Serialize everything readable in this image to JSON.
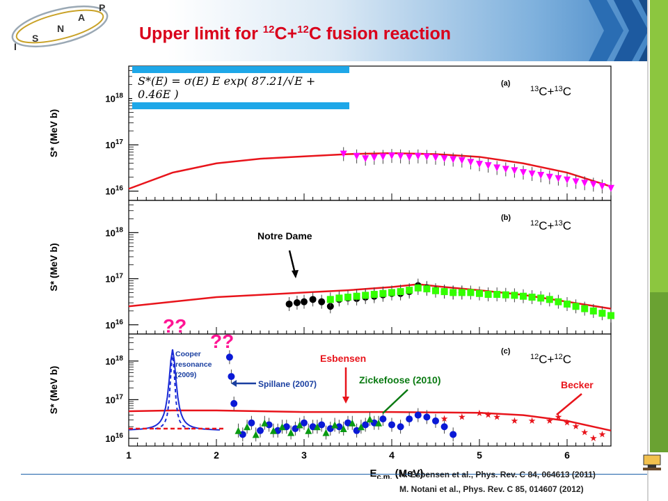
{
  "slide": {
    "title_html": "Upper limit for <sup>12</sup>C+<sup>12</sup>C fusion reaction",
    "logo_letters": [
      "I",
      "S",
      "N",
      "A",
      "P"
    ],
    "references": [
      "H. Esbensen et al., Phys. Rev. C 84, 064613 (2011)",
      "M. Notani et al., Phys. Rev. C 85, 014607 (2012)"
    ],
    "formula_text": "S*(E) = σ(E) E exp( 87.21/√E + 0.46E )"
  },
  "chart_data": [
    {
      "type": "scatter",
      "panel": "(a)",
      "system_html": "<tspan dy='-6' font-size='11'>13</tspan><tspan dy='6'>C+</tspan><tspan dy='-6' font-size='11'>13</tspan><tspan dy='6'>C</tspan>",
      "ylabel": "S* (MeV b)",
      "yscale": "log",
      "yticks": [
        "10^16",
        "10^17",
        "10^18"
      ],
      "xlim": [
        1,
        6.5
      ],
      "ylim_log10": [
        15.8,
        18.7
      ],
      "fit_curve": {
        "color": "#e8141b",
        "points": [
          [
            1,
            16.05
          ],
          [
            1.5,
            16.4
          ],
          [
            2,
            16.6
          ],
          [
            2.5,
            16.7
          ],
          [
            3,
            16.75
          ],
          [
            3.5,
            16.8
          ],
          [
            4,
            16.82
          ],
          [
            4.5,
            16.8
          ],
          [
            5,
            16.74
          ],
          [
            5.5,
            16.6
          ],
          [
            6,
            16.4
          ],
          [
            6.5,
            16.1
          ]
        ]
      },
      "series": [
        {
          "marker": "triangle-down",
          "color": "#ff00ff",
          "points": [
            [
              3.45,
              16.8
            ],
            [
              3.6,
              16.75
            ],
            [
              3.7,
              16.7
            ],
            [
              3.8,
              16.72
            ],
            [
              3.9,
              16.74
            ],
            [
              4.0,
              16.76
            ],
            [
              4.1,
              16.75
            ],
            [
              4.2,
              16.73
            ],
            [
              4.3,
              16.75
            ],
            [
              4.4,
              16.74
            ],
            [
              4.5,
              16.72
            ],
            [
              4.6,
              16.7
            ],
            [
              4.7,
              16.68
            ],
            [
              4.8,
              16.66
            ],
            [
              4.9,
              16.62
            ],
            [
              5.0,
              16.58
            ],
            [
              5.1,
              16.55
            ],
            [
              5.2,
              16.5
            ],
            [
              5.3,
              16.47
            ],
            [
              5.4,
              16.44
            ],
            [
              5.5,
              16.4
            ],
            [
              5.6,
              16.37
            ],
            [
              5.7,
              16.34
            ],
            [
              5.8,
              16.3
            ],
            [
              5.9,
              16.27
            ],
            [
              6.0,
              16.24
            ],
            [
              6.1,
              16.2
            ],
            [
              6.2,
              16.17
            ],
            [
              6.3,
              16.14
            ],
            [
              6.4,
              16.1
            ],
            [
              6.5,
              16.06
            ]
          ]
        }
      ]
    },
    {
      "type": "scatter",
      "panel": "(b)",
      "system_html": "<tspan dy='-6' font-size='11'>12</tspan><tspan dy='6'>C+</tspan><tspan dy='-6' font-size='11'>13</tspan><tspan dy='6'>C</tspan>",
      "ylabel": "S* (MeV b)",
      "yscale": "log",
      "yticks": [
        "10^16",
        "10^17",
        "10^18"
      ],
      "xlim": [
        1,
        6.5
      ],
      "ylim_log10": [
        15.8,
        18.7
      ],
      "annotation": "Notre Dame",
      "fit_curve": {
        "color": "#e8141b",
        "points": [
          [
            1,
            16.4
          ],
          [
            1.5,
            16.5
          ],
          [
            2,
            16.6
          ],
          [
            2.5,
            16.65
          ],
          [
            3,
            16.7
          ],
          [
            3.5,
            16.75
          ],
          [
            4,
            16.82
          ],
          [
            4.3,
            16.88
          ],
          [
            4.6,
            16.82
          ],
          [
            5,
            16.75
          ],
          [
            5.5,
            16.65
          ],
          [
            6,
            16.5
          ],
          [
            6.5,
            16.35
          ]
        ]
      },
      "series": [
        {
          "marker": "circle",
          "color": "#000000",
          "points": [
            [
              2.83,
              16.45
            ],
            [
              2.92,
              16.48
            ],
            [
              3.0,
              16.5
            ],
            [
              3.1,
              16.55
            ],
            [
              3.2,
              16.5
            ],
            [
              3.3,
              16.4
            ],
            [
              3.4,
              16.55
            ],
            [
              3.5,
              16.58
            ],
            [
              3.6,
              16.57
            ],
            [
              3.7,
              16.6
            ],
            [
              3.8,
              16.62
            ],
            [
              3.9,
              16.65
            ],
            [
              4.0,
              16.68
            ],
            [
              4.1,
              16.68
            ],
            [
              4.2,
              16.72
            ],
            [
              4.3,
              16.85
            ],
            [
              4.4,
              16.8
            ],
            [
              4.5,
              16.75
            ],
            [
              4.6,
              16.72
            ],
            [
              4.7,
              16.7
            ],
            [
              4.8,
              16.7
            ]
          ]
        },
        {
          "marker": "square",
          "color": "#33ff00",
          "points": [
            [
              3.3,
              16.55
            ],
            [
              3.4,
              16.58
            ],
            [
              3.5,
              16.6
            ],
            [
              3.6,
              16.62
            ],
            [
              3.7,
              16.64
            ],
            [
              3.8,
              16.66
            ],
            [
              3.9,
              16.68
            ],
            [
              4.0,
              16.7
            ],
            [
              4.1,
              16.72
            ],
            [
              4.2,
              16.75
            ],
            [
              4.3,
              16.8
            ],
            [
              4.4,
              16.78
            ],
            [
              4.5,
              16.74
            ],
            [
              4.6,
              16.72
            ],
            [
              4.7,
              16.7
            ],
            [
              4.8,
              16.7
            ],
            [
              4.9,
              16.7
            ],
            [
              5.0,
              16.68
            ],
            [
              5.1,
              16.66
            ],
            [
              5.2,
              16.66
            ],
            [
              5.3,
              16.65
            ],
            [
              5.4,
              16.64
            ],
            [
              5.5,
              16.62
            ],
            [
              5.6,
              16.6
            ],
            [
              5.7,
              16.58
            ],
            [
              5.8,
              16.55
            ],
            [
              5.9,
              16.5
            ],
            [
              6.0,
              16.45
            ],
            [
              6.1,
              16.4
            ],
            [
              6.2,
              16.35
            ],
            [
              6.3,
              16.3
            ],
            [
              6.4,
              16.25
            ],
            [
              6.5,
              16.2
            ]
          ]
        }
      ]
    },
    {
      "type": "scatter",
      "panel": "(c)",
      "system_html": "<tspan dy='-6' font-size='11'>12</tspan><tspan dy='6'>C+</tspan><tspan dy='-6' font-size='11'>12</tspan><tspan dy='6'>C</tspan>",
      "xlabel": "E_c.m. (MeV)",
      "ylabel": "S* (MeV b)",
      "yscale": "log",
      "xticks": [
        1,
        2,
        3,
        4,
        5,
        6
      ],
      "yticks": [
        "10^16",
        "10^17",
        "10^18"
      ],
      "xlim": [
        1,
        6.5
      ],
      "ylim_log10": [
        15.8,
        18.7
      ],
      "annotations": {
        "question_marks": [
          "??",
          "??"
        ],
        "cooper": [
          "Cooper",
          "resonance",
          "(2009)"
        ],
        "spillane": "Spillane (2007)",
        "esbensen": "Esbensen",
        "zickefoose": "Zickefoose (2010)",
        "becker": "Becker"
      },
      "fit_curve": {
        "color": "#e8141b",
        "points": [
          [
            1,
            16.7
          ],
          [
            1.5,
            16.72
          ],
          [
            2,
            16.72
          ],
          [
            2.5,
            16.7
          ],
          [
            3,
            16.68
          ],
          [
            3.5,
            16.68
          ],
          [
            4,
            16.68
          ],
          [
            4.5,
            16.67
          ],
          [
            5,
            16.66
          ],
          [
            5.5,
            16.6
          ],
          [
            6,
            16.45
          ],
          [
            6.5,
            16.2
          ]
        ]
      },
      "series": [
        {
          "marker": "circle",
          "color": "#0a19d6",
          "points": [
            [
              2.15,
              18.1
            ],
            [
              2.17,
              17.6
            ],
            [
              2.2,
              16.9
            ],
            [
              2.3,
              16.1
            ],
            [
              2.4,
              16.4
            ],
            [
              2.5,
              16.2
            ],
            [
              2.6,
              16.35
            ],
            [
              2.7,
              16.2
            ],
            [
              2.8,
              16.3
            ],
            [
              2.9,
              16.25
            ],
            [
              3.0,
              16.4
            ],
            [
              3.1,
              16.3
            ],
            [
              3.2,
              16.35
            ],
            [
              3.3,
              16.25
            ],
            [
              3.4,
              16.3
            ],
            [
              3.5,
              16.4
            ],
            [
              3.6,
              16.2
            ],
            [
              3.7,
              16.35
            ],
            [
              3.8,
              16.4
            ],
            [
              3.9,
              16.5
            ],
            [
              4.0,
              16.35
            ],
            [
              4.1,
              16.3
            ],
            [
              4.2,
              16.5
            ],
            [
              4.3,
              16.6
            ],
            [
              4.4,
              16.55
            ],
            [
              4.5,
              16.45
            ],
            [
              4.6,
              16.3
            ],
            [
              4.7,
              16.1
            ]
          ]
        },
        {
          "marker": "triangle-up",
          "color": "#0a9a12",
          "points": [
            [
              2.25,
              16.2
            ],
            [
              2.35,
              16.3
            ],
            [
              2.45,
              16.1
            ],
            [
              2.55,
              16.4
            ],
            [
              2.65,
              16.2
            ],
            [
              2.75,
              16.3
            ],
            [
              2.85,
              16.15
            ],
            [
              2.95,
              16.35
            ],
            [
              3.05,
              16.2
            ],
            [
              3.15,
              16.3
            ],
            [
              3.25,
              16.15
            ],
            [
              3.35,
              16.35
            ],
            [
              3.45,
              16.25
            ],
            [
              3.55,
              16.4
            ],
            [
              3.65,
              16.3
            ],
            [
              3.75,
              16.5
            ],
            [
              3.85,
              16.4
            ]
          ]
        },
        {
          "marker": "star",
          "color": "#e8141b",
          "points": [
            [
              4.6,
              16.5
            ],
            [
              4.8,
              16.55
            ],
            [
              5.0,
              16.65
            ],
            [
              5.1,
              16.6
            ],
            [
              5.2,
              16.55
            ],
            [
              5.4,
              16.45
            ],
            [
              5.6,
              16.45
            ],
            [
              5.8,
              16.45
            ],
            [
              5.9,
              16.55
            ],
            [
              6.0,
              16.4
            ],
            [
              6.1,
              16.3
            ],
            [
              6.2,
              16.15
            ],
            [
              6.3,
              16.0
            ],
            [
              6.4,
              16.1
            ]
          ]
        }
      ]
    }
  ]
}
